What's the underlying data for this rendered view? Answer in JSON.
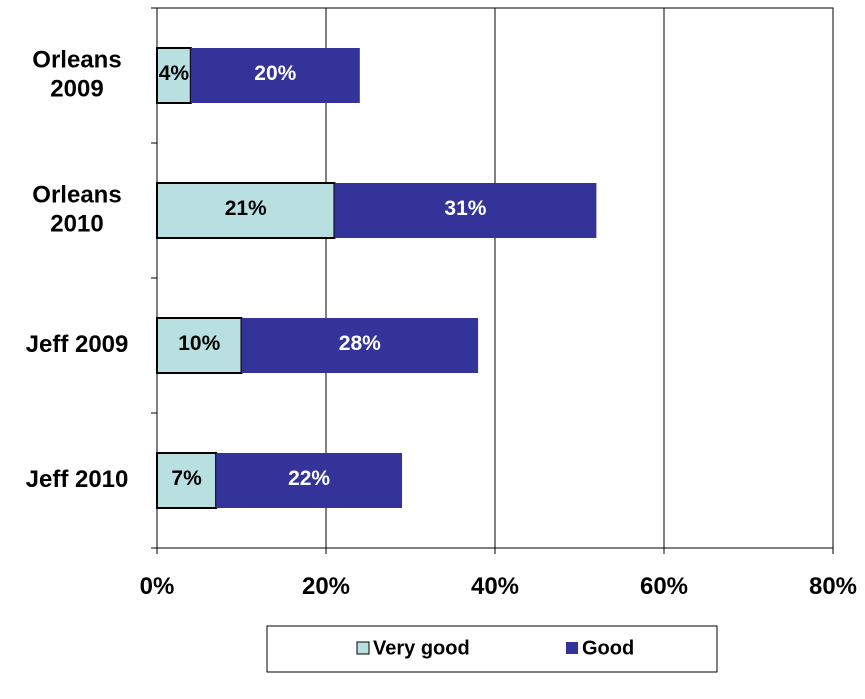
{
  "chart_data": {
    "type": "bar",
    "orientation": "horizontal",
    "stacked": true,
    "categories": [
      [
        "Orleans",
        "2009"
      ],
      [
        "Orleans",
        "2010"
      ],
      [
        "Jeff 2009"
      ],
      [
        "Jeff 2010"
      ]
    ],
    "series": [
      {
        "name": "Very good",
        "values": [
          4,
          21,
          10,
          7
        ],
        "labels": [
          "4%",
          "21%",
          "10%",
          "7%"
        ]
      },
      {
        "name": "Good",
        "values": [
          20,
          31,
          28,
          22
        ],
        "labels": [
          "20%",
          "31%",
          "28%",
          "22%"
        ]
      }
    ],
    "xlim": [
      0,
      80
    ],
    "xticks": [
      "0%",
      "20%",
      "40%",
      "60%",
      "80%"
    ],
    "grid": "vertical",
    "legend": "bottom",
    "colors": {
      "very_good_fill": "#B8E0E0",
      "good_fill": "#333399",
      "very_good_text": "#000000",
      "good_text": "#ffffff"
    }
  }
}
